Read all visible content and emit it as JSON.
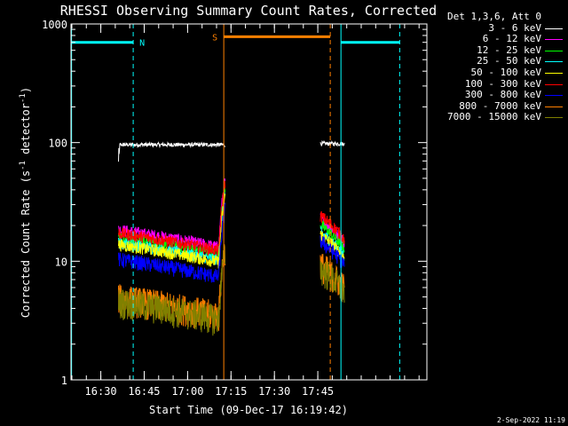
{
  "chart_data": {
    "type": "line",
    "title": "RHESSI Observing Summary Count Rates, Corrected",
    "xlabel": "Start Time (09-Dec-17 16:19:42)",
    "ylabel_parts": [
      "Corrected Count Rate (s",
      "-1",
      " detector",
      "-1",
      ")"
    ],
    "yscale": "log",
    "ylim": [
      1,
      1000
    ],
    "xlim_minutes": [
      0,
      123
    ],
    "yticks": [
      {
        "v": 1,
        "label": "1"
      },
      {
        "v": 10,
        "label": "10"
      },
      {
        "v": 100,
        "label": "100"
      },
      {
        "v": 1000,
        "label": "1000"
      }
    ],
    "xticks": [
      {
        "m": 10.3,
        "label": "16:30"
      },
      {
        "m": 25.3,
        "label": "16:45"
      },
      {
        "m": 40.3,
        "label": "17:00"
      },
      {
        "m": 55.3,
        "label": "17:15"
      },
      {
        "m": 70.3,
        "label": "17:30"
      },
      {
        "m": 85.3,
        "label": "17:45"
      }
    ],
    "legend_title": "Det 1,3,6, Att 0",
    "series": [
      {
        "name": "3 - 6 keV",
        "color": "#ffffff",
        "seg1": 96,
        "seg2": 98,
        "noise": 0.04
      },
      {
        "name": "6 - 12 keV",
        "color": "#ff00ff",
        "seg1": 16,
        "seg2": 17,
        "noise": 0.12
      },
      {
        "name": "12 - 25 keV",
        "color": "#00ff00",
        "seg1": 14,
        "seg2": 15,
        "noise": 0.12
      },
      {
        "name": "25 - 50 keV",
        "color": "#00ffff",
        "seg1": 12.5,
        "seg2": 13,
        "noise": 0.12
      },
      {
        "name": "50 - 100 keV",
        "color": "#ffff00",
        "seg1": 12,
        "seg2": 12.5,
        "noise": 0.12
      },
      {
        "name": "100 - 300 keV",
        "color": "#ff0000",
        "seg1": 15,
        "seg2": 18,
        "noise": 0.12
      },
      {
        "name": "300 - 800 keV",
        "color": "#0000ff",
        "seg1": 9,
        "seg2": 11,
        "noise": 0.15
      },
      {
        "name": "800 - 7000 keV",
        "color": "#ff8000",
        "seg1": 4.3,
        "seg2": 7,
        "noise": 0.3
      },
      {
        "name": "7000 - 15000 keV",
        "color": "#808000",
        "seg1": 4,
        "seg2": 6.5,
        "noise": 0.3
      }
    ],
    "data_intervals_minutes": [
      [
        16.4,
        53.3
      ],
      [
        86.2,
        94.6
      ]
    ],
    "flags": [
      {
        "label": "N",
        "color": "#00ffff",
        "bar": [
          0,
          21.5
        ],
        "level": 700,
        "dashed_at": 21.5,
        "solid_at": 0.2
      },
      {
        "label": "S",
        "color": "#ff8000",
        "bar": [
          52.8,
          89.6
        ],
        "level": 780,
        "dashed_at": 89.6,
        "solid_at": 52.8
      },
      {
        "label": "",
        "color": "#00ffff",
        "bar": [
          93.3,
          113.6
        ],
        "level": 700,
        "dashed_at": 113.6,
        "solid_at": 93.3
      }
    ]
  },
  "footer_date": "2-Sep-2022 11:19",
  "colors": {
    "background": "#000000",
    "axes": "#ffffff"
  }
}
